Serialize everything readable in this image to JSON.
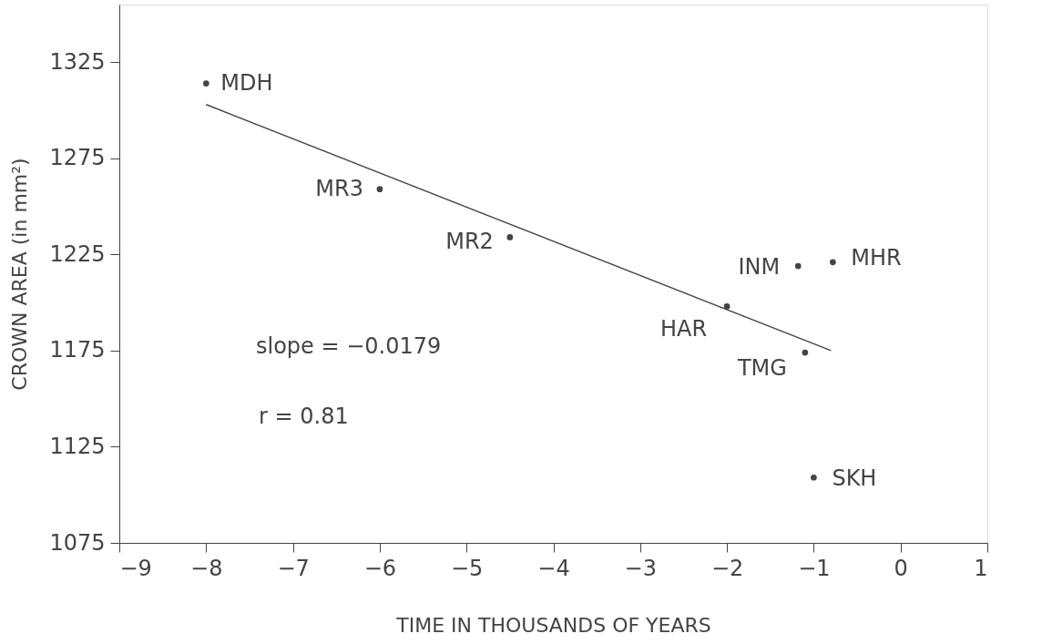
{
  "chart_data": {
    "type": "scatter",
    "xlabel": "TIME IN THOUSANDS OF YEARS",
    "ylabel": "CROWN AREA  (in mm²)",
    "xlim": [
      -9,
      1
    ],
    "xticks": [
      -9,
      -8,
      -7,
      -6,
      -5,
      -4,
      -3,
      -2,
      -1,
      0,
      1
    ],
    "ylim": [
      1075,
      1355
    ],
    "yticks": [
      1075,
      1125,
      1175,
      1225,
      1275,
      1325
    ],
    "grid": false,
    "series": [
      {
        "color": "#444444",
        "marker": "circle",
        "x": [
          -8,
          -6,
          -4.5,
          -2,
          -1.18,
          -0.78,
          -1.1,
          -1
        ],
        "values": [
          1314,
          1259,
          1234,
          1198,
          1219,
          1221,
          1174,
          1109
        ]
      },
      {
        "type": "line",
        "color": "#444444",
        "marker": "none",
        "line_style": "solid",
        "x": [
          -8,
          -0.8
        ],
        "values": [
          1303,
          1175
        ]
      }
    ],
    "annotations": [
      {
        "text": "MDH",
        "x": -8,
        "y": 1314
      },
      {
        "text": "MR3",
        "x": -6,
        "y": 1259
      },
      {
        "text": "MR2",
        "x": -4.5,
        "y": 1234
      },
      {
        "text": "HAR",
        "x": -2,
        "y": 1198
      },
      {
        "text": "INM",
        "x": -1.18,
        "y": 1219
      },
      {
        "text": "MHR",
        "x": -0.78,
        "y": 1221
      },
      {
        "text": "TMG",
        "x": -1.1,
        "y": 1174
      },
      {
        "text": "SKH",
        "x": -1,
        "y": 1109
      },
      "slope = −0.0179",
      "r = 0.81"
    ]
  }
}
